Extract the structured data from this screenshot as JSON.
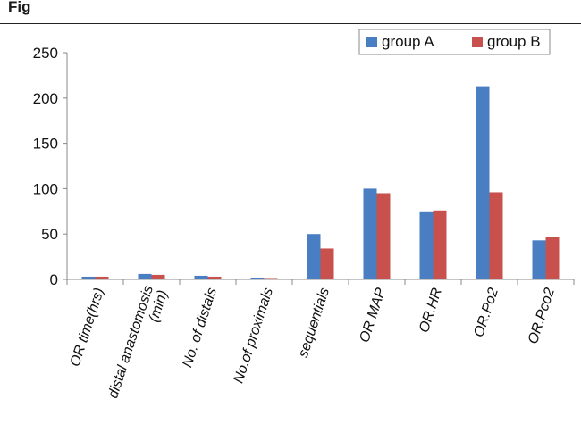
{
  "figure": {
    "label": "Fig"
  },
  "chart_data": {
    "type": "bar",
    "categories": [
      "OR time(hrs)",
      "distal anastomosis (min)",
      "No. of distals",
      "No.of proximals",
      "sequentials",
      "OR MAP",
      "OR.HR",
      "OR.Po2",
      "OR.Pco2"
    ],
    "category_lines": [
      [
        "OR time(hrs)"
      ],
      [
        "distal anastomosis",
        "(min)"
      ],
      [
        "No. of distals"
      ],
      [
        "No.of proximals"
      ],
      [
        "sequentials"
      ],
      [
        "OR MAP"
      ],
      [
        "OR.HR"
      ],
      [
        "OR.Po2"
      ],
      [
        "OR.Pco2"
      ]
    ],
    "series": [
      {
        "name": "group A",
        "color": "#4a7ec2",
        "values": [
          3,
          6,
          4,
          2,
          50,
          100,
          75,
          213,
          43
        ]
      },
      {
        "name": "group B",
        "color": "#c8504d",
        "values": [
          3,
          5,
          3,
          1.5,
          34,
          95,
          76,
          96,
          47
        ]
      }
    ],
    "yticks": [
      "0",
      "50",
      "100",
      "150",
      "200",
      "250"
    ],
    "ylim": [
      0,
      250
    ],
    "title": "",
    "xlabel": "",
    "ylabel": "",
    "grid": false,
    "legend_position": "top-right",
    "axis_color": "#888888"
  }
}
